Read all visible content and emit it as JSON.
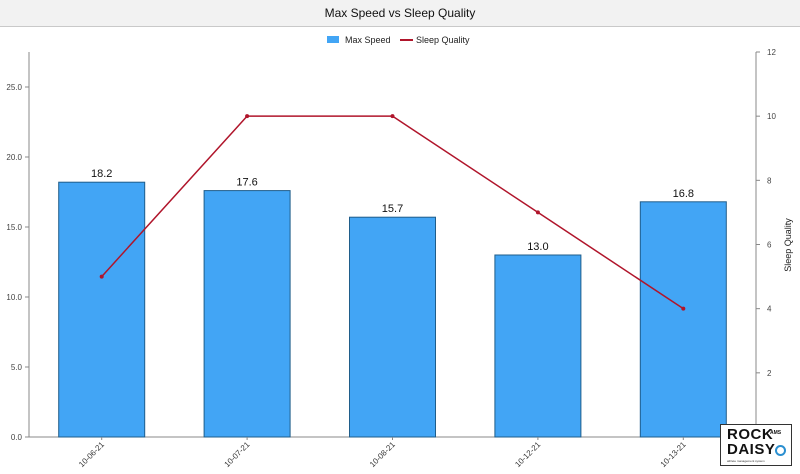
{
  "header": {
    "title": "Max Speed vs Sleep Quality"
  },
  "colors": {
    "bar": "#42a5f5",
    "bar_stroke": "#1f5d8a",
    "line": "#b0152b",
    "axis": "#888888"
  },
  "logo": {
    "line1": "ROCK",
    "line2": "DAISY",
    "badge": "AMS",
    "tagline": "athlete management system"
  },
  "chart_data": {
    "type": "bar",
    "title": "Max Speed vs Sleep Quality",
    "categories": [
      "10-06-21",
      "10-07-21",
      "10-08-21",
      "10-12-21",
      "10-13-21"
    ],
    "series": [
      {
        "name": "Max Speed",
        "type": "bar",
        "axis": "left",
        "values": [
          18.2,
          17.6,
          15.7,
          13.0,
          16.8
        ]
      },
      {
        "name": "Sleep Quality",
        "type": "line",
        "axis": "right",
        "values": [
          5,
          10,
          10,
          7,
          4
        ]
      }
    ],
    "y_left": {
      "label": "",
      "min": 0,
      "max": 27.5,
      "ticks": [
        "0.0",
        "5.0",
        "10.0",
        "15.0",
        "20.0",
        "25.0"
      ]
    },
    "y_right": {
      "label": "Sleep Quality",
      "min": 0,
      "max": 12,
      "ticks": [
        "2",
        "4",
        "6",
        "8",
        "10",
        "12"
      ]
    },
    "legend_position": "top-center",
    "grid": false
  }
}
